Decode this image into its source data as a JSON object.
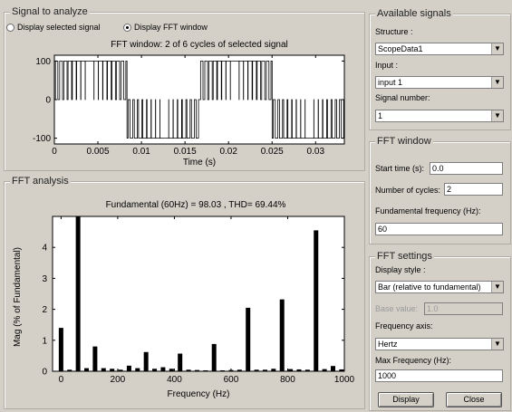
{
  "signal_panel": {
    "title": "Signal to analyze",
    "radio_selected_label": "Display selected signal",
    "radio_fft_label": "Display FFT window",
    "selected_mode": "fft_window"
  },
  "available_signals": {
    "title": "Available signals",
    "structure_label": "Structure :",
    "structure_value": "ScopeData1",
    "input_label": "Input :",
    "input_value": "input 1",
    "signal_number_label": "Signal number:",
    "signal_number_value": "1"
  },
  "fft_window": {
    "title": "FFT window",
    "start_time_label": "Start time (s):",
    "start_time_value": "0.0",
    "cycles_label": "Number of cycles:",
    "cycles_value": "2",
    "fundamental_label": "Fundamental frequency (Hz):",
    "fundamental_value": "60"
  },
  "fft_settings": {
    "title": "FFT settings",
    "display_style_label": "Display style :",
    "display_style_value": "Bar (relative to fundamental)",
    "base_value_label": "Base value:",
    "base_value_value": "1.0",
    "frequency_axis_label": "Frequency axis:",
    "frequency_axis_value": "Hertz",
    "max_freq_label": "Max Frequency (Hz):",
    "max_freq_value": "1000",
    "display_button": "Display",
    "close_button": "Close"
  },
  "fft_analysis": {
    "title": "FFT analysis"
  },
  "colors": {
    "panel_bg": "#d4d0c8",
    "plot_bg": "#ffffff",
    "trace": "#000000"
  },
  "chart_data": [
    {
      "type": "line",
      "title": "FFT window: 2 of 6 cycles of selected signal",
      "xlabel": "Time (s)",
      "ylabel": "",
      "xlim": [
        0,
        0.0333
      ],
      "ylim": [
        -115,
        115
      ],
      "xticks": [
        "0",
        "0.005",
        "0.01",
        "0.015",
        "0.02",
        "0.025",
        "0.03"
      ],
      "yticks": [
        "100",
        "0",
        "-100"
      ],
      "grid": false,
      "waveform": "PWM",
      "amplitude": 100,
      "frequency_hz": 60
    },
    {
      "type": "bar",
      "title": "Fundamental (60Hz) = 98.03 , THD= 69.44%",
      "xlabel": "Frequency (Hz)",
      "ylabel": "Mag (% of Fundamental)",
      "xlim": [
        -30,
        1000
      ],
      "ylim": [
        0,
        5
      ],
      "xticks": [
        "0",
        "200",
        "400",
        "600",
        "800",
        "1000"
      ],
      "yticks": [
        "0",
        "1",
        "2",
        "3",
        "4"
      ],
      "grid": false,
      "x": [
        0,
        30,
        60,
        90,
        120,
        150,
        180,
        210,
        240,
        270,
        300,
        330,
        360,
        390,
        420,
        450,
        480,
        510,
        540,
        570,
        600,
        630,
        660,
        690,
        720,
        750,
        780,
        810,
        840,
        870,
        900,
        930,
        960,
        990
      ],
      "values": [
        1.4,
        0.05,
        5.0,
        0.1,
        0.8,
        0.1,
        0.08,
        0.05,
        0.18,
        0.1,
        0.62,
        0.08,
        0.13,
        0.08,
        0.57,
        0.05,
        0.04,
        0.03,
        0.88,
        0.03,
        0.04,
        0.05,
        2.05,
        0.05,
        0.05,
        0.08,
        2.32,
        0.07,
        0.06,
        0.05,
        4.55,
        0.07,
        0.17,
        0.06
      ]
    }
  ]
}
